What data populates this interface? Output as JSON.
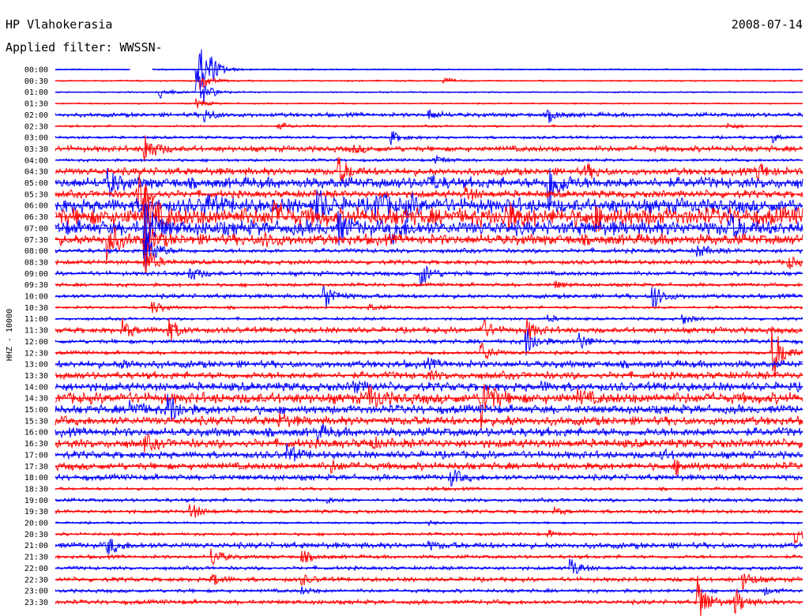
{
  "header": {
    "station": "HP Vlahokerasia",
    "date": "2008-07-14",
    "filter": "Applied filter: WWSSN-"
  },
  "chart_data": {
    "type": "line",
    "title": "",
    "ylabel": "HHZ - 10000",
    "xlabel": "",
    "grid": false,
    "colors": {
      "even": "#0000ff",
      "odd": "#ff0000"
    },
    "traces": [
      {
        "label": "00:00",
        "events": [
          [
            0.19,
            1.0
          ],
          [
            0.205,
            0.35
          ]
        ],
        "noise": 0.02,
        "gaps": [
          [
            0.1,
            0.13
          ]
        ]
      },
      {
        "label": "00:30",
        "events": [
          [
            0.195,
            0.3
          ],
          [
            0.52,
            0.1
          ]
        ],
        "noise": 0.02
      },
      {
        "label": "01:00",
        "events": [
          [
            0.14,
            0.2
          ],
          [
            0.19,
            0.7
          ]
        ],
        "noise": 0.02
      },
      {
        "label": "01:30",
        "events": [
          [
            0.19,
            0.15
          ]
        ],
        "noise": 0.02
      },
      {
        "label": "02:00",
        "events": [
          [
            0.2,
            0.2
          ],
          [
            0.5,
            0.15
          ],
          [
            0.66,
            0.2
          ]
        ],
        "noise": 0.06
      },
      {
        "label": "02:30",
        "events": [
          [
            0.3,
            0.1
          ],
          [
            0.9,
            0.1
          ]
        ],
        "noise": 0.03
      },
      {
        "label": "03:00",
        "events": [
          [
            0.45,
            0.2
          ],
          [
            0.96,
            0.15
          ]
        ],
        "noise": 0.04
      },
      {
        "label": "03:30",
        "events": [
          [
            0.12,
            0.5
          ],
          [
            0.4,
            0.1
          ]
        ],
        "noise": 0.08
      },
      {
        "label": "04:00",
        "events": [
          [
            0.51,
            0.15
          ]
        ],
        "noise": 0.04
      },
      {
        "label": "04:30",
        "events": [
          [
            0.38,
            0.4
          ],
          [
            0.71,
            0.2
          ],
          [
            0.94,
            0.3
          ]
        ],
        "noise": 0.1
      },
      {
        "label": "05:00",
        "events": [
          [
            0.07,
            0.4
          ],
          [
            0.66,
            0.9
          ],
          [
            0.5,
            0.2
          ]
        ],
        "noise": 0.15
      },
      {
        "label": "05:30",
        "events": [
          [
            0.11,
            0.7
          ],
          [
            0.55,
            0.2
          ]
        ],
        "noise": 0.1
      },
      {
        "label": "06:00",
        "events": [
          [
            0.2,
            0.3
          ],
          [
            0.35,
            0.5
          ],
          [
            0.43,
            0.4
          ],
          [
            0.47,
            0.3
          ]
        ],
        "noise": 0.2
      },
      {
        "label": "06:30",
        "events": [
          [
            0.12,
            0.9
          ],
          [
            0.29,
            0.4
          ],
          [
            0.6,
            0.4
          ],
          [
            0.72,
            0.3
          ]
        ],
        "noise": 0.25
      },
      {
        "label": "07:00",
        "events": [
          [
            0.12,
            1.0
          ],
          [
            0.38,
            0.4
          ],
          [
            0.45,
            0.35
          ],
          [
            0.9,
            0.4
          ]
        ],
        "noise": 0.2
      },
      {
        "label": "07:30",
        "events": [
          [
            0.07,
            0.6
          ],
          [
            0.12,
            0.5
          ],
          [
            0.28,
            0.2
          ]
        ],
        "noise": 0.15
      },
      {
        "label": "08:00",
        "events": [
          [
            0.12,
            0.8
          ],
          [
            0.86,
            0.2
          ]
        ],
        "noise": 0.06
      },
      {
        "label": "08:30",
        "events": [
          [
            0.12,
            0.5
          ],
          [
            0.98,
            0.2
          ]
        ],
        "noise": 0.06
      },
      {
        "label": "09:00",
        "events": [
          [
            0.18,
            0.25
          ],
          [
            0.49,
            0.4
          ]
        ],
        "noise": 0.06
      },
      {
        "label": "09:30",
        "events": [
          [
            0.67,
            0.1
          ]
        ],
        "noise": 0.05
      },
      {
        "label": "10:00",
        "events": [
          [
            0.36,
            0.5
          ],
          [
            0.8,
            0.4
          ]
        ],
        "noise": 0.06
      },
      {
        "label": "10:30",
        "events": [
          [
            0.13,
            0.2
          ],
          [
            0.42,
            0.1
          ]
        ],
        "noise": 0.04
      },
      {
        "label": "11:00",
        "events": [
          [
            0.66,
            0.1
          ],
          [
            0.84,
            0.15
          ]
        ],
        "noise": 0.04
      },
      {
        "label": "11:30",
        "events": [
          [
            0.09,
            0.3
          ],
          [
            0.15,
            0.4
          ],
          [
            0.57,
            0.35
          ],
          [
            0.63,
            0.35
          ]
        ],
        "noise": 0.08
      },
      {
        "label": "12:00",
        "events": [
          [
            0.63,
            0.5
          ],
          [
            0.7,
            0.3
          ]
        ],
        "noise": 0.06
      },
      {
        "label": "12:30",
        "events": [
          [
            0.57,
            0.35
          ],
          [
            0.96,
            0.9
          ]
        ],
        "noise": 0.05
      },
      {
        "label": "13:00",
        "events": [
          [
            0.09,
            0.15
          ],
          [
            0.5,
            0.1
          ]
        ],
        "noise": 0.1
      },
      {
        "label": "13:30",
        "events": [
          [
            0.5,
            0.1
          ]
        ],
        "noise": 0.1
      },
      {
        "label": "14:00",
        "events": [
          [
            0.4,
            0.15
          ],
          [
            0.65,
            0.1
          ]
        ],
        "noise": 0.12
      },
      {
        "label": "14:30",
        "events": [
          [
            0.42,
            0.4
          ],
          [
            0.57,
            0.9
          ],
          [
            0.7,
            0.2
          ]
        ],
        "noise": 0.15
      },
      {
        "label": "15:00",
        "events": [
          [
            0.1,
            0.3
          ],
          [
            0.15,
            0.6
          ]
        ],
        "noise": 0.12
      },
      {
        "label": "15:30",
        "events": [
          [
            0.3,
            0.2
          ],
          [
            0.6,
            0.1
          ]
        ],
        "noise": 0.12
      },
      {
        "label": "16:00",
        "events": [
          [
            0.35,
            0.2
          ]
        ],
        "noise": 0.12
      },
      {
        "label": "16:30",
        "events": [
          [
            0.12,
            0.2
          ],
          [
            0.42,
            0.15
          ]
        ],
        "noise": 0.12
      },
      {
        "label": "17:00",
        "events": [
          [
            0.31,
            0.3
          ],
          [
            0.81,
            0.15
          ]
        ],
        "noise": 0.1
      },
      {
        "label": "17:30",
        "events": [
          [
            0.37,
            0.15
          ],
          [
            0.83,
            0.2
          ]
        ],
        "noise": 0.1
      },
      {
        "label": "18:00",
        "events": [
          [
            0.53,
            0.25
          ]
        ],
        "noise": 0.08
      },
      {
        "label": "18:30",
        "events": [
          [
            0.5,
            0.05
          ]
        ],
        "noise": 0.04
      },
      {
        "label": "19:00",
        "events": [
          [
            0.36,
            0.1
          ]
        ],
        "noise": 0.05
      },
      {
        "label": "19:30",
        "events": [
          [
            0.18,
            0.3
          ],
          [
            0.67,
            0.1
          ]
        ],
        "noise": 0.05
      },
      {
        "label": "20:00",
        "events": [
          [
            0.5,
            0.05
          ]
        ],
        "noise": 0.03
      },
      {
        "label": "20:30",
        "events": [
          [
            0.66,
            0.1
          ],
          [
            0.99,
            0.3
          ]
        ],
        "noise": 0.04
      },
      {
        "label": "21:00",
        "events": [
          [
            0.07,
            0.3
          ],
          [
            0.5,
            0.1
          ]
        ],
        "noise": 0.08
      },
      {
        "label": "21:30",
        "events": [
          [
            0.21,
            0.3
          ],
          [
            0.33,
            0.2
          ]
        ],
        "noise": 0.05
      },
      {
        "label": "22:00",
        "events": [
          [
            0.69,
            0.3
          ]
        ],
        "noise": 0.05
      },
      {
        "label": "22:30",
        "events": [
          [
            0.21,
            0.2
          ],
          [
            0.33,
            0.15
          ],
          [
            0.92,
            0.3
          ]
        ],
        "noise": 0.06
      },
      {
        "label": "23:00",
        "events": [
          [
            0.33,
            0.1
          ],
          [
            0.95,
            0.1
          ]
        ],
        "noise": 0.05
      },
      {
        "label": "23:30",
        "events": [
          [
            0.86,
            0.8
          ],
          [
            0.91,
            0.4
          ]
        ],
        "noise": 0.06
      }
    ]
  }
}
